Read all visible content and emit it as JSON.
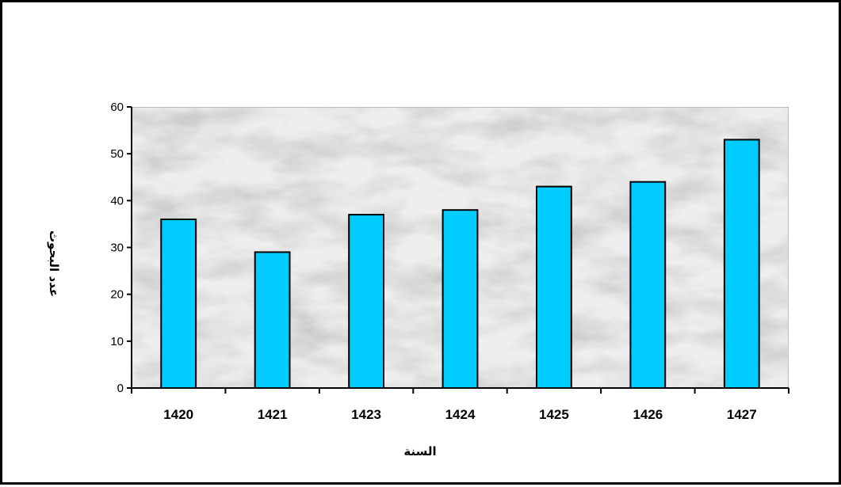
{
  "chart_data": {
    "type": "bar",
    "categories": [
      "1420",
      "1421",
      "1423",
      "1424",
      "1425",
      "1426",
      "1427"
    ],
    "values": [
      36,
      29,
      37,
      38,
      43,
      44,
      53
    ],
    "title": "",
    "xlabel": "السنة",
    "ylabel": "عدد البحوث",
    "ylim": [
      0,
      60
    ],
    "yticks": [
      0,
      10,
      20,
      30,
      40,
      50,
      60
    ],
    "grid": false,
    "legend": "none",
    "bar_color": "#00ccff",
    "bar_edge_color": "#000000",
    "plot_background": "marble-gray"
  }
}
